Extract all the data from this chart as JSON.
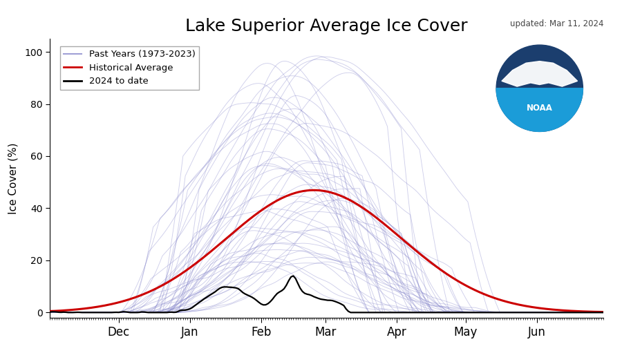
{
  "title": "Lake Superior Average Ice Cover",
  "update_text": "updated: Mar 11, 2024",
  "ylabel": "Ice Cover (%)",
  "ylim": [
    -2,
    105
  ],
  "yticks": [
    0,
    20,
    40,
    60,
    80,
    100
  ],
  "month_labels": [
    "Dec",
    "Jan",
    "Feb",
    "Mar",
    "Apr",
    "May",
    "Jun"
  ],
  "month_ticks": [
    30,
    61,
    92,
    120,
    151,
    181,
    212
  ],
  "bg_color": "#ffffff",
  "past_years_color": "#8888cc",
  "historical_avg_color": "#cc0000",
  "current_year_color": "#000000",
  "past_years_alpha": 0.4,
  "past_years_lw": 0.65,
  "hist_avg_lw": 2.2,
  "current_lw": 1.6,
  "legend_labels": [
    "Past Years (1973-2023)",
    "Historical Average",
    "2024 to date"
  ],
  "num_past_years": 50,
  "seed": 42,
  "n_days": 242,
  "peak_day_hist": 115,
  "sigma_hist": 38,
  "peak_val_hist": 47
}
